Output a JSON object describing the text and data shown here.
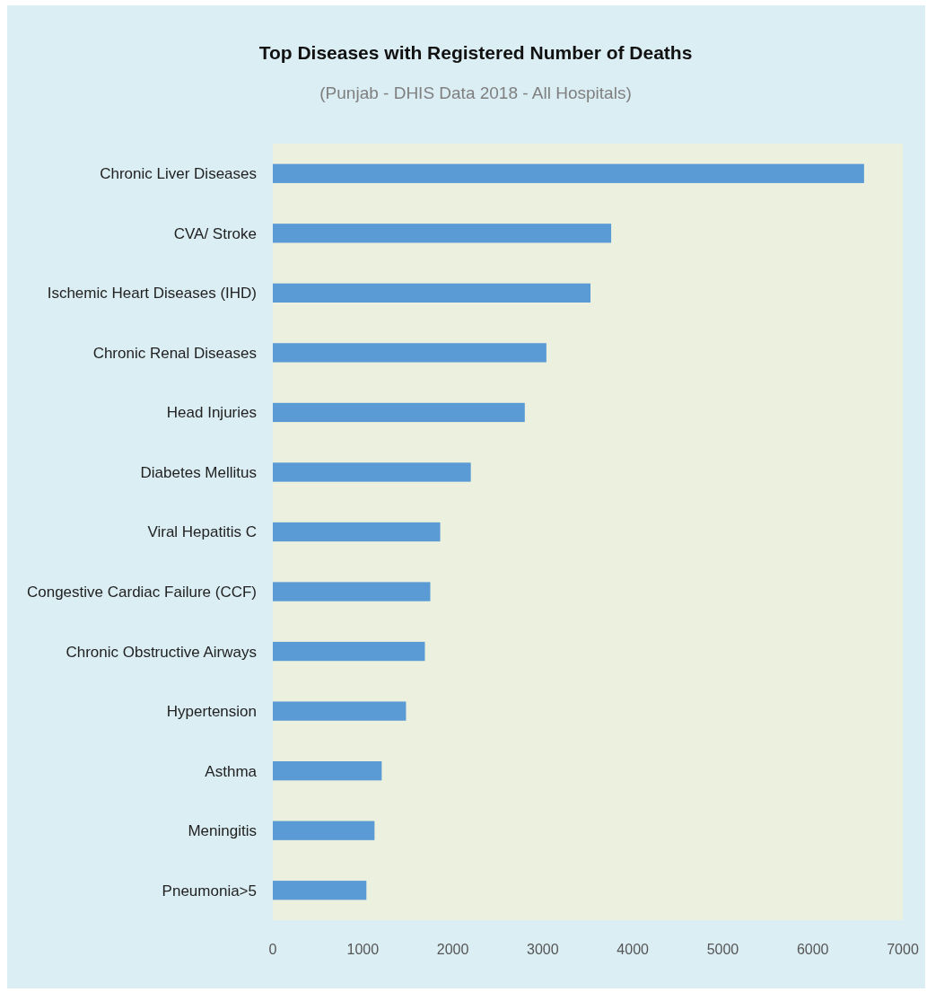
{
  "chart_data": {
    "type": "bar",
    "orientation": "horizontal",
    "title": "Top Diseases with Registered Number of Deaths",
    "subtitle": "(Punjab - DHIS Data 2018 - All Hospitals)",
    "categories": [
      "Chronic Liver Diseases",
      "CVA/ Stroke",
      "Ischemic Heart Diseases (IHD)",
      "Chronic Renal Diseases",
      "Head Injuries",
      "Diabetes Mellitus",
      "Viral Hepatitis C",
      "Congestive Cardiac Failure (CCF)",
      "Chronic Obstructive Airways",
      "Hypertension",
      "Asthma",
      "Meningitis",
      "Pneumonia>5"
    ],
    "values": [
      6570,
      3760,
      3530,
      3040,
      2800,
      2200,
      1860,
      1750,
      1690,
      1480,
      1210,
      1130,
      1040
    ],
    "color": "#5b9bd5",
    "xlim": [
      0,
      7000
    ],
    "xticks": [
      0,
      1000,
      2000,
      3000,
      4000,
      5000,
      6000,
      7000
    ]
  }
}
